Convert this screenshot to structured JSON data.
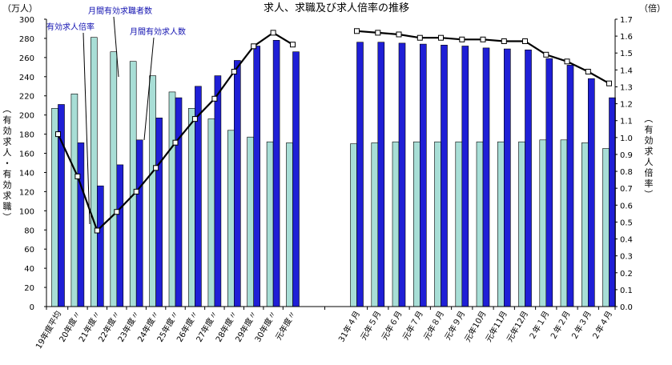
{
  "chart_data": {
    "type": "bar",
    "title": "求人、求職及び求人倍率の推移",
    "left_unit": "（万人）",
    "right_unit": "（倍）",
    "ylabel": "（有効求人・有効求職）",
    "y2label": "（有効求人倍率）",
    "ylim": [
      0,
      300
    ],
    "y_ticks": [
      0,
      20,
      40,
      60,
      80,
      100,
      120,
      140,
      160,
      180,
      200,
      220,
      240,
      260,
      280,
      300
    ],
    "y2lim": [
      0,
      1.7
    ],
    "y2_ticks": [
      "0.0",
      "0.1",
      "0.2",
      "0.3",
      "0.4",
      "0.5",
      "0.6",
      "0.7",
      "0.8",
      "0.9",
      "1.0",
      "1.1",
      "1.2",
      "1.3",
      "1.4",
      "1.5",
      "1.6",
      "1.7"
    ],
    "grid": false,
    "categories": [
      "19年度平均",
      "20年度〃",
      "21年度〃",
      "22年度〃",
      "23年度〃",
      "24年度〃",
      "25年度〃",
      "26年度〃",
      "27年度〃",
      "28年度〃",
      "29年度〃",
      "30年度〃",
      "元年度〃",
      "31年４月",
      "元年５月",
      "元年６月",
      "元年７月",
      "元年８月",
      "元年９月",
      "元年10月",
      "元年11月",
      "元年12月",
      "２年１月",
      "２年２月",
      "２年３月",
      "２年４月"
    ],
    "series": [
      {
        "name": "月間有効求職者数",
        "type": "bar",
        "color": "#a8ded6",
        "values": [
          207,
          222,
          281,
          266,
          256,
          241,
          224,
          207,
          196,
          184,
          177,
          172,
          171,
          170,
          171,
          172,
          172,
          172,
          172,
          172,
          172,
          172,
          174,
          174,
          171,
          165
        ]
      },
      {
        "name": "月間有効求人数",
        "type": "bar",
        "color": "#1f1fd6",
        "values": [
          211,
          171,
          126,
          148,
          174,
          197,
          218,
          230,
          241,
          257,
          272,
          278,
          266,
          276,
          276,
          275,
          274,
          273,
          272,
          270,
          269,
          268,
          259,
          252,
          238,
          218
        ]
      },
      {
        "name": "有効求人倍率",
        "type": "line",
        "axis": "right",
        "color": "#000000",
        "values": [
          1.02,
          0.77,
          0.45,
          0.56,
          0.68,
          0.82,
          0.97,
          1.11,
          1.23,
          1.39,
          1.54,
          1.62,
          1.55,
          1.63,
          1.62,
          1.61,
          1.59,
          1.59,
          1.58,
          1.58,
          1.57,
          1.57,
          1.49,
          1.45,
          1.39,
          1.32
        ]
      }
    ],
    "annotations": [
      "有効求人倍率",
      "月間有効求職者数",
      "月間有効求人数"
    ]
  }
}
